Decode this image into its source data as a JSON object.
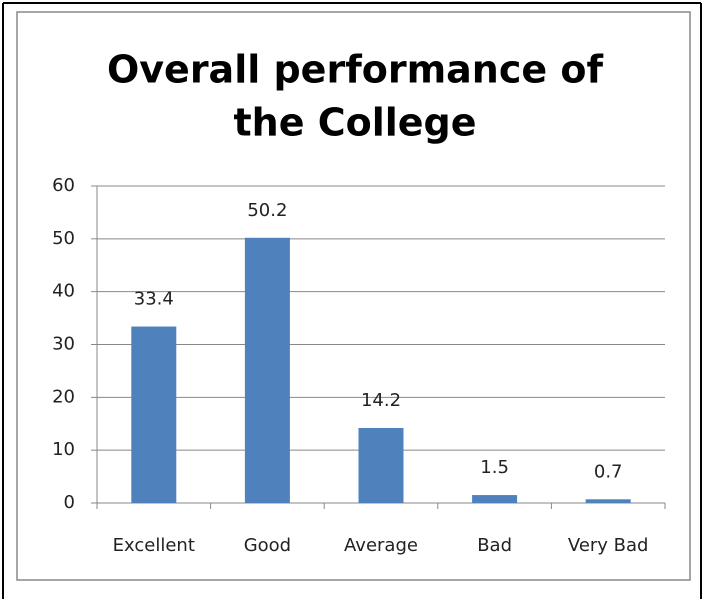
{
  "chart_data": {
    "type": "bar",
    "title": [
      "Overall performance  of",
      "the College"
    ],
    "categories": [
      "Excellent",
      "Good",
      "Average",
      "Bad",
      "Very Bad"
    ],
    "values": [
      33.4,
      50.2,
      14.2,
      1.5,
      0.7
    ],
    "color": "#4f81bd",
    "ylim": [
      0,
      60
    ],
    "yticks": [
      0,
      10,
      20,
      30,
      40,
      50,
      60
    ],
    "grid": true
  }
}
